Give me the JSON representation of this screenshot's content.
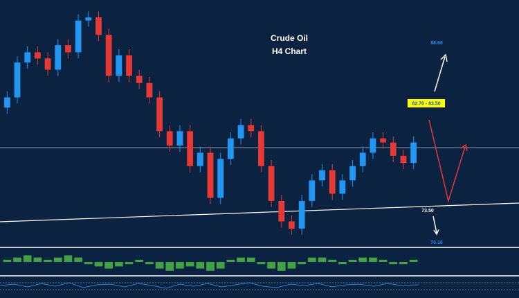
{
  "chart_data": {
    "type": "candlestick",
    "title": "Crude Oil",
    "subtitle": "H4 Chart",
    "annotations": [
      "88.60",
      "82.70 - 83.50",
      "73.50",
      "70.10"
    ],
    "up_color": "#2196f3",
    "down_color": "#e53935",
    "ylim": [
      68,
      92
    ],
    "open": [
      81.5,
      82.5,
      85.9,
      86.9,
      86.3,
      85.2,
      87.6,
      86.9,
      90.0,
      90.3,
      88.6,
      84.6,
      86.6,
      84.6,
      83.9,
      82.5,
      79.2,
      77.8,
      79.2,
      75.8,
      77.1,
      72.7,
      76.5,
      78.5,
      79.8,
      79.2,
      75.8,
      72.4,
      70.4,
      69.7,
      72.4,
      74.4,
      75.4,
      73.1,
      74.4,
      75.8,
      77.1,
      78.5,
      78.1,
      76.8,
      76.1
    ],
    "high": [
      83.1,
      86.5,
      87.5,
      87.5,
      86.9,
      88.2,
      88.2,
      90.6,
      90.9,
      90.9,
      89.2,
      87.2,
      87.2,
      85.2,
      84.5,
      83.1,
      79.8,
      79.8,
      79.8,
      77.7,
      77.7,
      77.1,
      79.1,
      80.4,
      80.4,
      79.8,
      76.4,
      73.0,
      71.0,
      73.0,
      75.0,
      76.0,
      76.0,
      75.0,
      76.4,
      77.7,
      79.1,
      79.1,
      78.7,
      77.4,
      78.7
    ],
    "low": [
      80.9,
      81.9,
      85.3,
      85.7,
      84.6,
      84.6,
      86.3,
      86.3,
      89.4,
      88.0,
      84.0,
      84.0,
      84.0,
      83.3,
      81.9,
      78.6,
      77.2,
      77.2,
      75.2,
      75.2,
      72.1,
      72.1,
      75.9,
      77.9,
      78.6,
      75.2,
      71.8,
      69.8,
      69.1,
      69.1,
      71.8,
      73.8,
      72.5,
      72.5,
      73.8,
      75.2,
      76.5,
      77.5,
      76.2,
      75.5,
      75.5
    ],
    "close": [
      82.5,
      85.9,
      86.9,
      86.3,
      85.2,
      87.6,
      86.9,
      90.0,
      90.3,
      88.6,
      84.6,
      86.6,
      84.6,
      83.9,
      82.5,
      79.2,
      77.8,
      79.2,
      75.8,
      77.1,
      72.7,
      76.5,
      78.5,
      79.8,
      79.2,
      75.8,
      72.4,
      70.4,
      69.7,
      72.4,
      74.4,
      75.4,
      73.1,
      74.4,
      75.8,
      77.1,
      78.5,
      78.1,
      76.8,
      76.1,
      78.1
    ],
    "indicator": {
      "color": "#43a047",
      "ylim": [
        -5,
        5
      ],
      "values": [
        1,
        2,
        3,
        2,
        1,
        2,
        3,
        2,
        -1,
        -2,
        -3,
        -2,
        -1,
        1,
        -1,
        -3,
        -4,
        -3,
        -2,
        -3,
        -4,
        -3,
        1,
        2,
        2,
        -1,
        -3,
        -4,
        -3,
        -1,
        2,
        2,
        1,
        -1,
        1,
        2,
        2,
        1,
        -1,
        -1,
        1
      ]
    }
  }
}
